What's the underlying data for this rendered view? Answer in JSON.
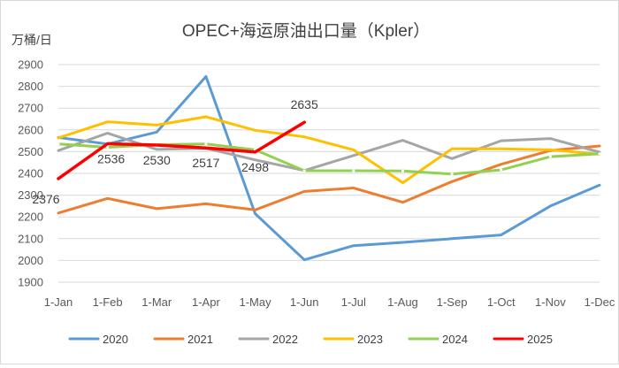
{
  "chart_data": {
    "type": "line",
    "title": "OPEC+海运原油出口量（Kpler）",
    "unit_label": "万桶/日",
    "categories": [
      "1-Jan",
      "1-Feb",
      "1-Mar",
      "1-Apr",
      "1-May",
      "1-Jun",
      "1-Jul",
      "1-Aug",
      "1-Sep",
      "1-Oct",
      "1-Nov",
      "1-Dec"
    ],
    "ylim": [
      1900,
      2900
    ],
    "yticks": [
      1900,
      2000,
      2100,
      2200,
      2300,
      2400,
      2500,
      2600,
      2700,
      2800,
      2900
    ],
    "grid": true,
    "legend_position": "bottom",
    "series": [
      {
        "name": "2020",
        "color": "#5b9bd5",
        "values": [
          2565,
          2535,
          2590,
          2845,
          2215,
          2003,
          2068,
          2083,
          2100,
          2117,
          2250,
          2346
        ]
      },
      {
        "name": "2021",
        "color": "#ed7d31",
        "values": [
          2218,
          2285,
          2238,
          2260,
          2232,
          2317,
          2333,
          2267,
          2362,
          2442,
          2505,
          2526
        ]
      },
      {
        "name": "2022",
        "color": "#a5a5a5",
        "values": [
          2505,
          2585,
          2510,
          2515,
          2462,
          2413,
          2482,
          2552,
          2468,
          2550,
          2560,
          2497
        ]
      },
      {
        "name": "2023",
        "color": "#ffc000",
        "values": [
          2563,
          2637,
          2622,
          2660,
          2598,
          2568,
          2508,
          2357,
          2513,
          2513,
          2508,
          2488
        ]
      },
      {
        "name": "2024",
        "color": "#92d050",
        "values": [
          2535,
          2520,
          2532,
          2535,
          2508,
          2412,
          2412,
          2411,
          2397,
          2416,
          2477,
          2490
        ]
      },
      {
        "name": "2025",
        "color": "#ff0000",
        "values": [
          2376,
          2536,
          2530,
          2517,
          2498,
          2635,
          null,
          null,
          null,
          null,
          null,
          null
        ],
        "labels": [
          "2376",
          "2536",
          "2530",
          "2517",
          "2498",
          "2635"
        ]
      }
    ]
  }
}
